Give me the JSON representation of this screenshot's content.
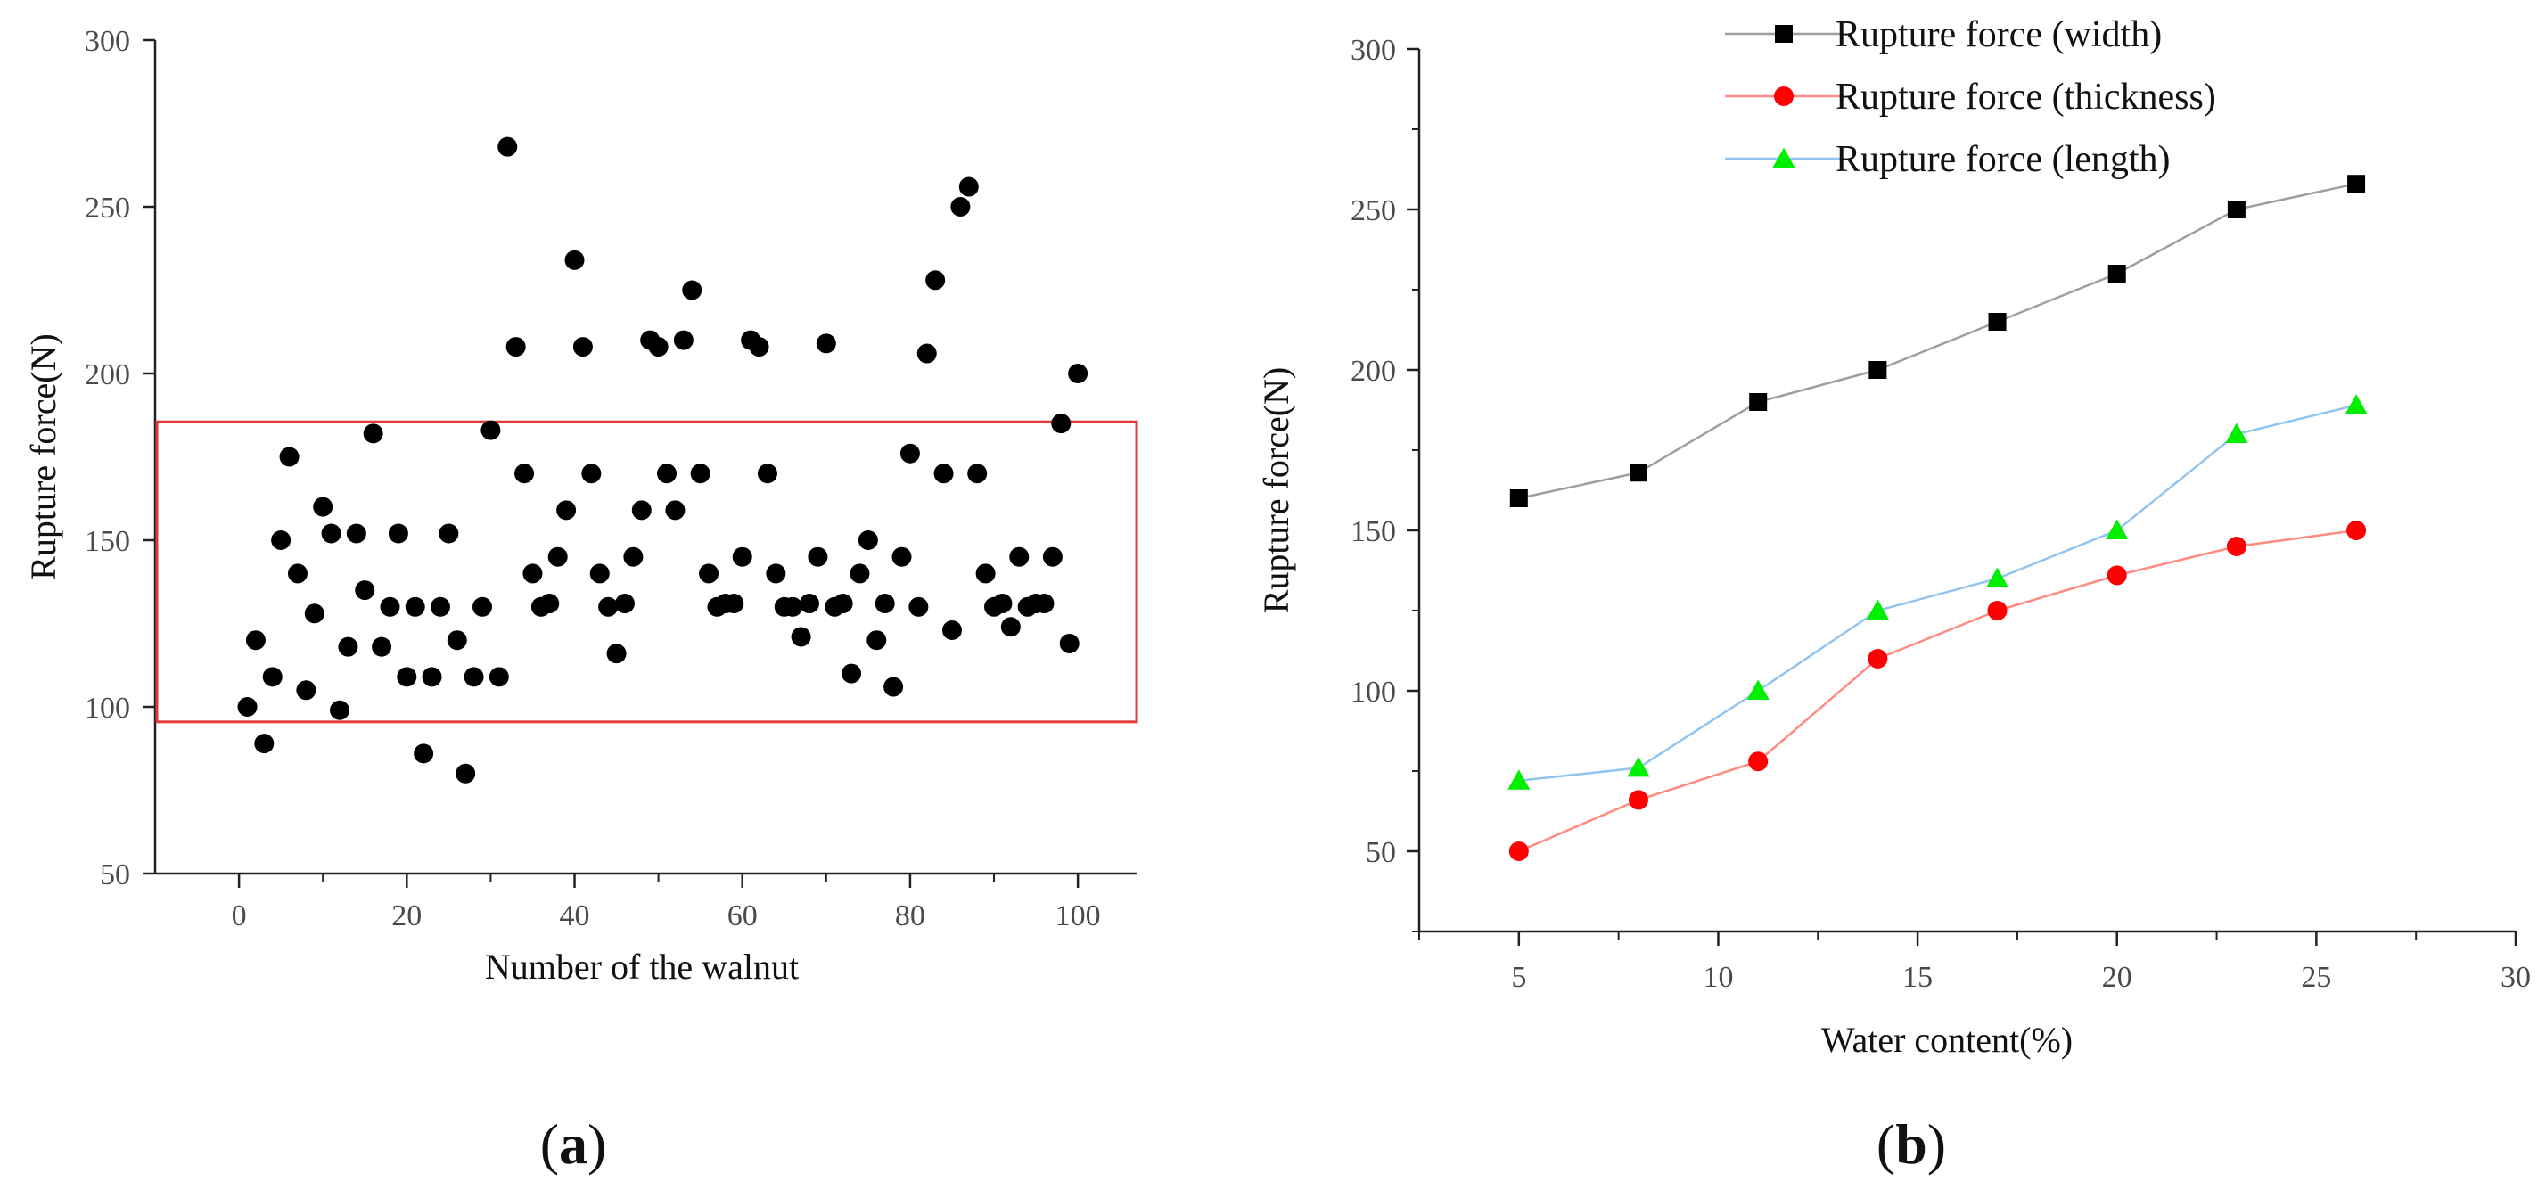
{
  "chart_data": [
    {
      "type": "scatter",
      "panel": "a",
      "caption_letter": "a",
      "xlabel": "Number of the walnut",
      "ylabel": "Rupture force(N)",
      "xlim": [
        -10,
        107
      ],
      "ylim": [
        50,
        300
      ],
      "xticks": [
        0,
        20,
        40,
        60,
        80,
        100
      ],
      "yticks": [
        50,
        100,
        150,
        200,
        250,
        300
      ],
      "highlight_box": {
        "x": [
          -10,
          107
        ],
        "y": [
          95.5,
          185.5
        ],
        "color": "#e53935"
      },
      "point_color": "#000000",
      "points": [
        [
          1,
          100
        ],
        [
          2,
          120
        ],
        [
          3,
          89
        ],
        [
          4,
          109
        ],
        [
          5,
          150
        ],
        [
          6,
          175
        ],
        [
          7,
          140
        ],
        [
          8,
          105
        ],
        [
          9,
          128
        ],
        [
          10,
          160
        ],
        [
          11,
          152
        ],
        [
          12,
          99
        ],
        [
          13,
          118
        ],
        [
          14,
          152
        ],
        [
          15,
          135
        ],
        [
          16,
          182
        ],
        [
          17,
          118
        ],
        [
          18,
          130
        ],
        [
          19,
          152
        ],
        [
          20,
          109
        ],
        [
          21,
          130
        ],
        [
          22,
          86
        ],
        [
          23,
          109
        ],
        [
          24,
          130
        ],
        [
          25,
          152
        ],
        [
          26,
          120
        ],
        [
          27,
          80
        ],
        [
          28,
          109
        ],
        [
          29,
          130
        ],
        [
          30,
          183
        ],
        [
          31,
          109
        ],
        [
          32,
          268
        ],
        [
          33,
          208
        ],
        [
          34,
          170
        ],
        [
          35,
          140
        ],
        [
          36,
          130
        ],
        [
          37,
          131
        ],
        [
          38,
          145
        ],
        [
          39,
          159
        ],
        [
          40,
          234
        ],
        [
          41,
          208
        ],
        [
          42,
          170
        ],
        [
          43,
          140
        ],
        [
          44,
          130
        ],
        [
          45,
          116
        ],
        [
          46,
          131
        ],
        [
          47,
          145
        ],
        [
          48,
          159
        ],
        [
          49,
          210
        ],
        [
          50,
          208
        ],
        [
          51,
          170
        ],
        [
          52,
          159
        ],
        [
          53,
          210
        ],
        [
          54,
          225
        ],
        [
          55,
          170
        ],
        [
          56,
          140
        ],
        [
          57,
          130
        ],
        [
          58,
          131
        ],
        [
          59,
          131
        ],
        [
          60,
          145
        ],
        [
          61,
          210
        ],
        [
          62,
          208
        ],
        [
          63,
          170
        ],
        [
          64,
          140
        ],
        [
          65,
          130
        ],
        [
          66,
          130
        ],
        [
          67,
          121
        ],
        [
          68,
          131
        ],
        [
          69,
          145
        ],
        [
          70,
          209
        ],
        [
          71,
          130
        ],
        [
          72,
          131
        ],
        [
          73,
          110
        ],
        [
          74,
          140
        ],
        [
          75,
          150
        ],
        [
          76,
          120
        ],
        [
          77,
          131
        ],
        [
          78,
          106
        ],
        [
          79,
          145
        ],
        [
          80,
          176
        ],
        [
          81,
          130
        ],
        [
          82,
          206
        ],
        [
          83,
          228
        ],
        [
          84,
          170
        ],
        [
          85,
          123
        ],
        [
          86,
          250
        ],
        [
          87,
          256
        ],
        [
          88,
          170
        ],
        [
          89,
          140
        ],
        [
          90,
          130
        ],
        [
          91,
          131
        ],
        [
          92,
          124
        ],
        [
          93,
          145
        ],
        [
          94,
          130
        ],
        [
          95,
          131
        ],
        [
          96,
          131
        ],
        [
          97,
          145
        ],
        [
          98,
          185
        ],
        [
          99,
          119
        ],
        [
          100,
          200
        ]
      ]
    },
    {
      "type": "line",
      "panel": "b",
      "caption_letter": "b",
      "xlabel": "Water content(%)",
      "ylabel": "Rupture force(N)",
      "xlim": [
        2.5,
        30
      ],
      "ylim": [
        25,
        300
      ],
      "xticks": [
        5,
        10,
        15,
        20,
        25,
        30
      ],
      "yticks": [
        50,
        100,
        150,
        200,
        250,
        300
      ],
      "legend_position": "top",
      "x": [
        5,
        8,
        11,
        14,
        17,
        20,
        23,
        26
      ],
      "series": [
        {
          "name": "Rupture force  (width)",
          "marker": "square",
          "line_color": "#9e9e9e",
          "marker_color": "#000000",
          "values": [
            160,
            168,
            190,
            200,
            215,
            230,
            250,
            258
          ]
        },
        {
          "name": "Rupture force  (thickness)",
          "marker": "circle",
          "line_color": "#ff8a80",
          "marker_color": "#ff0000",
          "values": [
            50,
            66,
            78,
            110,
            125,
            136,
            145,
            150
          ]
        },
        {
          "name": "Rupture force   (length)",
          "marker": "triangle",
          "line_color": "#90c4ef",
          "marker_color": "#00ee00",
          "values": [
            72,
            76,
            100,
            125,
            135,
            150,
            180,
            189
          ]
        }
      ]
    }
  ]
}
